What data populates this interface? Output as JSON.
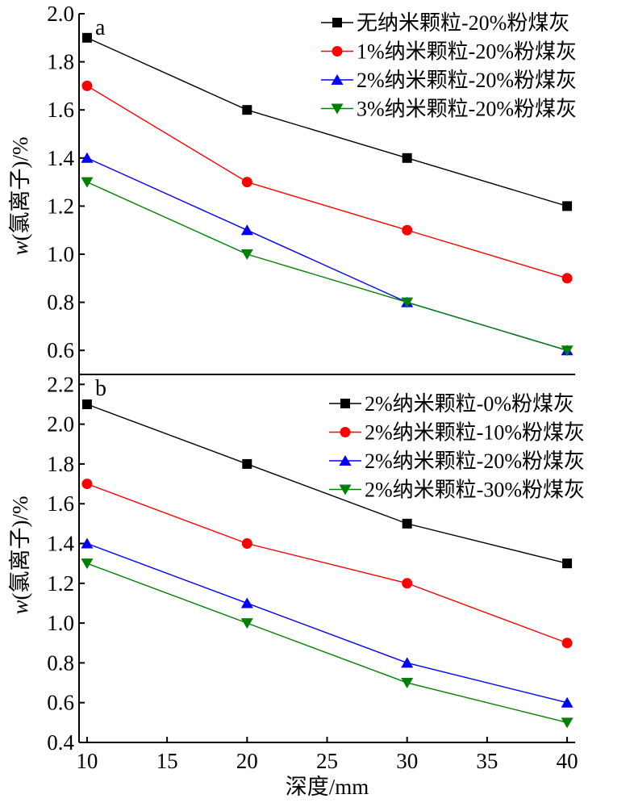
{
  "chart_data": [
    {
      "type": "line",
      "panel_label": "a",
      "ylabel_italic": "w",
      "ylabel_rest": "(氯离子)/%",
      "xlabel": "",
      "xlim": [
        9.5,
        40.5
      ],
      "ylim": [
        0.5,
        2.0
      ],
      "yticks": [
        "0.6",
        "0.8",
        "1.0",
        "1.2",
        "1.4",
        "1.6",
        "1.8",
        "2.0"
      ],
      "xticks": [],
      "legend_position": "top-right",
      "grid": false,
      "x": [
        10,
        20,
        30,
        40
      ],
      "series": [
        {
          "name": "无纳米颗粒-20%粉煤灰",
          "color": "#000000",
          "marker": "square",
          "values": [
            1.9,
            1.6,
            1.4,
            1.2
          ]
        },
        {
          "name": "1%纳米颗粒-20%粉煤灰",
          "color": "#ff0000",
          "marker": "circle",
          "values": [
            1.7,
            1.3,
            1.1,
            0.9
          ]
        },
        {
          "name": "2%纳米颗粒-20%粉煤灰",
          "color": "#0000ff",
          "marker": "triangle-up",
          "values": [
            1.4,
            1.1,
            0.8,
            0.6
          ]
        },
        {
          "name": "3%纳米颗粒-20%粉煤灰",
          "color": "#008000",
          "marker": "triangle-down",
          "values": [
            1.3,
            1.0,
            0.8,
            0.6
          ]
        }
      ]
    },
    {
      "type": "line",
      "panel_label": "b",
      "ylabel_italic": "w",
      "ylabel_rest": "(氯离子)/%",
      "xlabel": "深度/mm",
      "xlim": [
        9.5,
        40.5
      ],
      "ylim": [
        0.4,
        2.25
      ],
      "yticks": [
        "0.4",
        "0.6",
        "0.8",
        "1.0",
        "1.2",
        "1.4",
        "1.6",
        "1.8",
        "2.0",
        "2.2"
      ],
      "xticks": [
        "10",
        "15",
        "20",
        "25",
        "30",
        "35",
        "40"
      ],
      "legend_position": "top-right",
      "grid": false,
      "x": [
        10,
        20,
        30,
        40
      ],
      "series": [
        {
          "name": "2%纳米颗粒-0%粉煤灰",
          "color": "#000000",
          "marker": "square",
          "values": [
            2.1,
            1.8,
            1.5,
            1.3
          ]
        },
        {
          "name": "2%纳米颗粒-10%粉煤灰",
          "color": "#ff0000",
          "marker": "circle",
          "values": [
            1.7,
            1.4,
            1.2,
            0.9
          ]
        },
        {
          "name": "2%纳米颗粒-20%粉煤灰",
          "color": "#0000ff",
          "marker": "triangle-up",
          "values": [
            1.4,
            1.1,
            0.8,
            0.6
          ]
        },
        {
          "name": "2%纳米颗粒-30%粉煤灰",
          "color": "#008000",
          "marker": "triangle-down",
          "values": [
            1.3,
            1.0,
            0.7,
            0.5
          ]
        }
      ]
    }
  ]
}
